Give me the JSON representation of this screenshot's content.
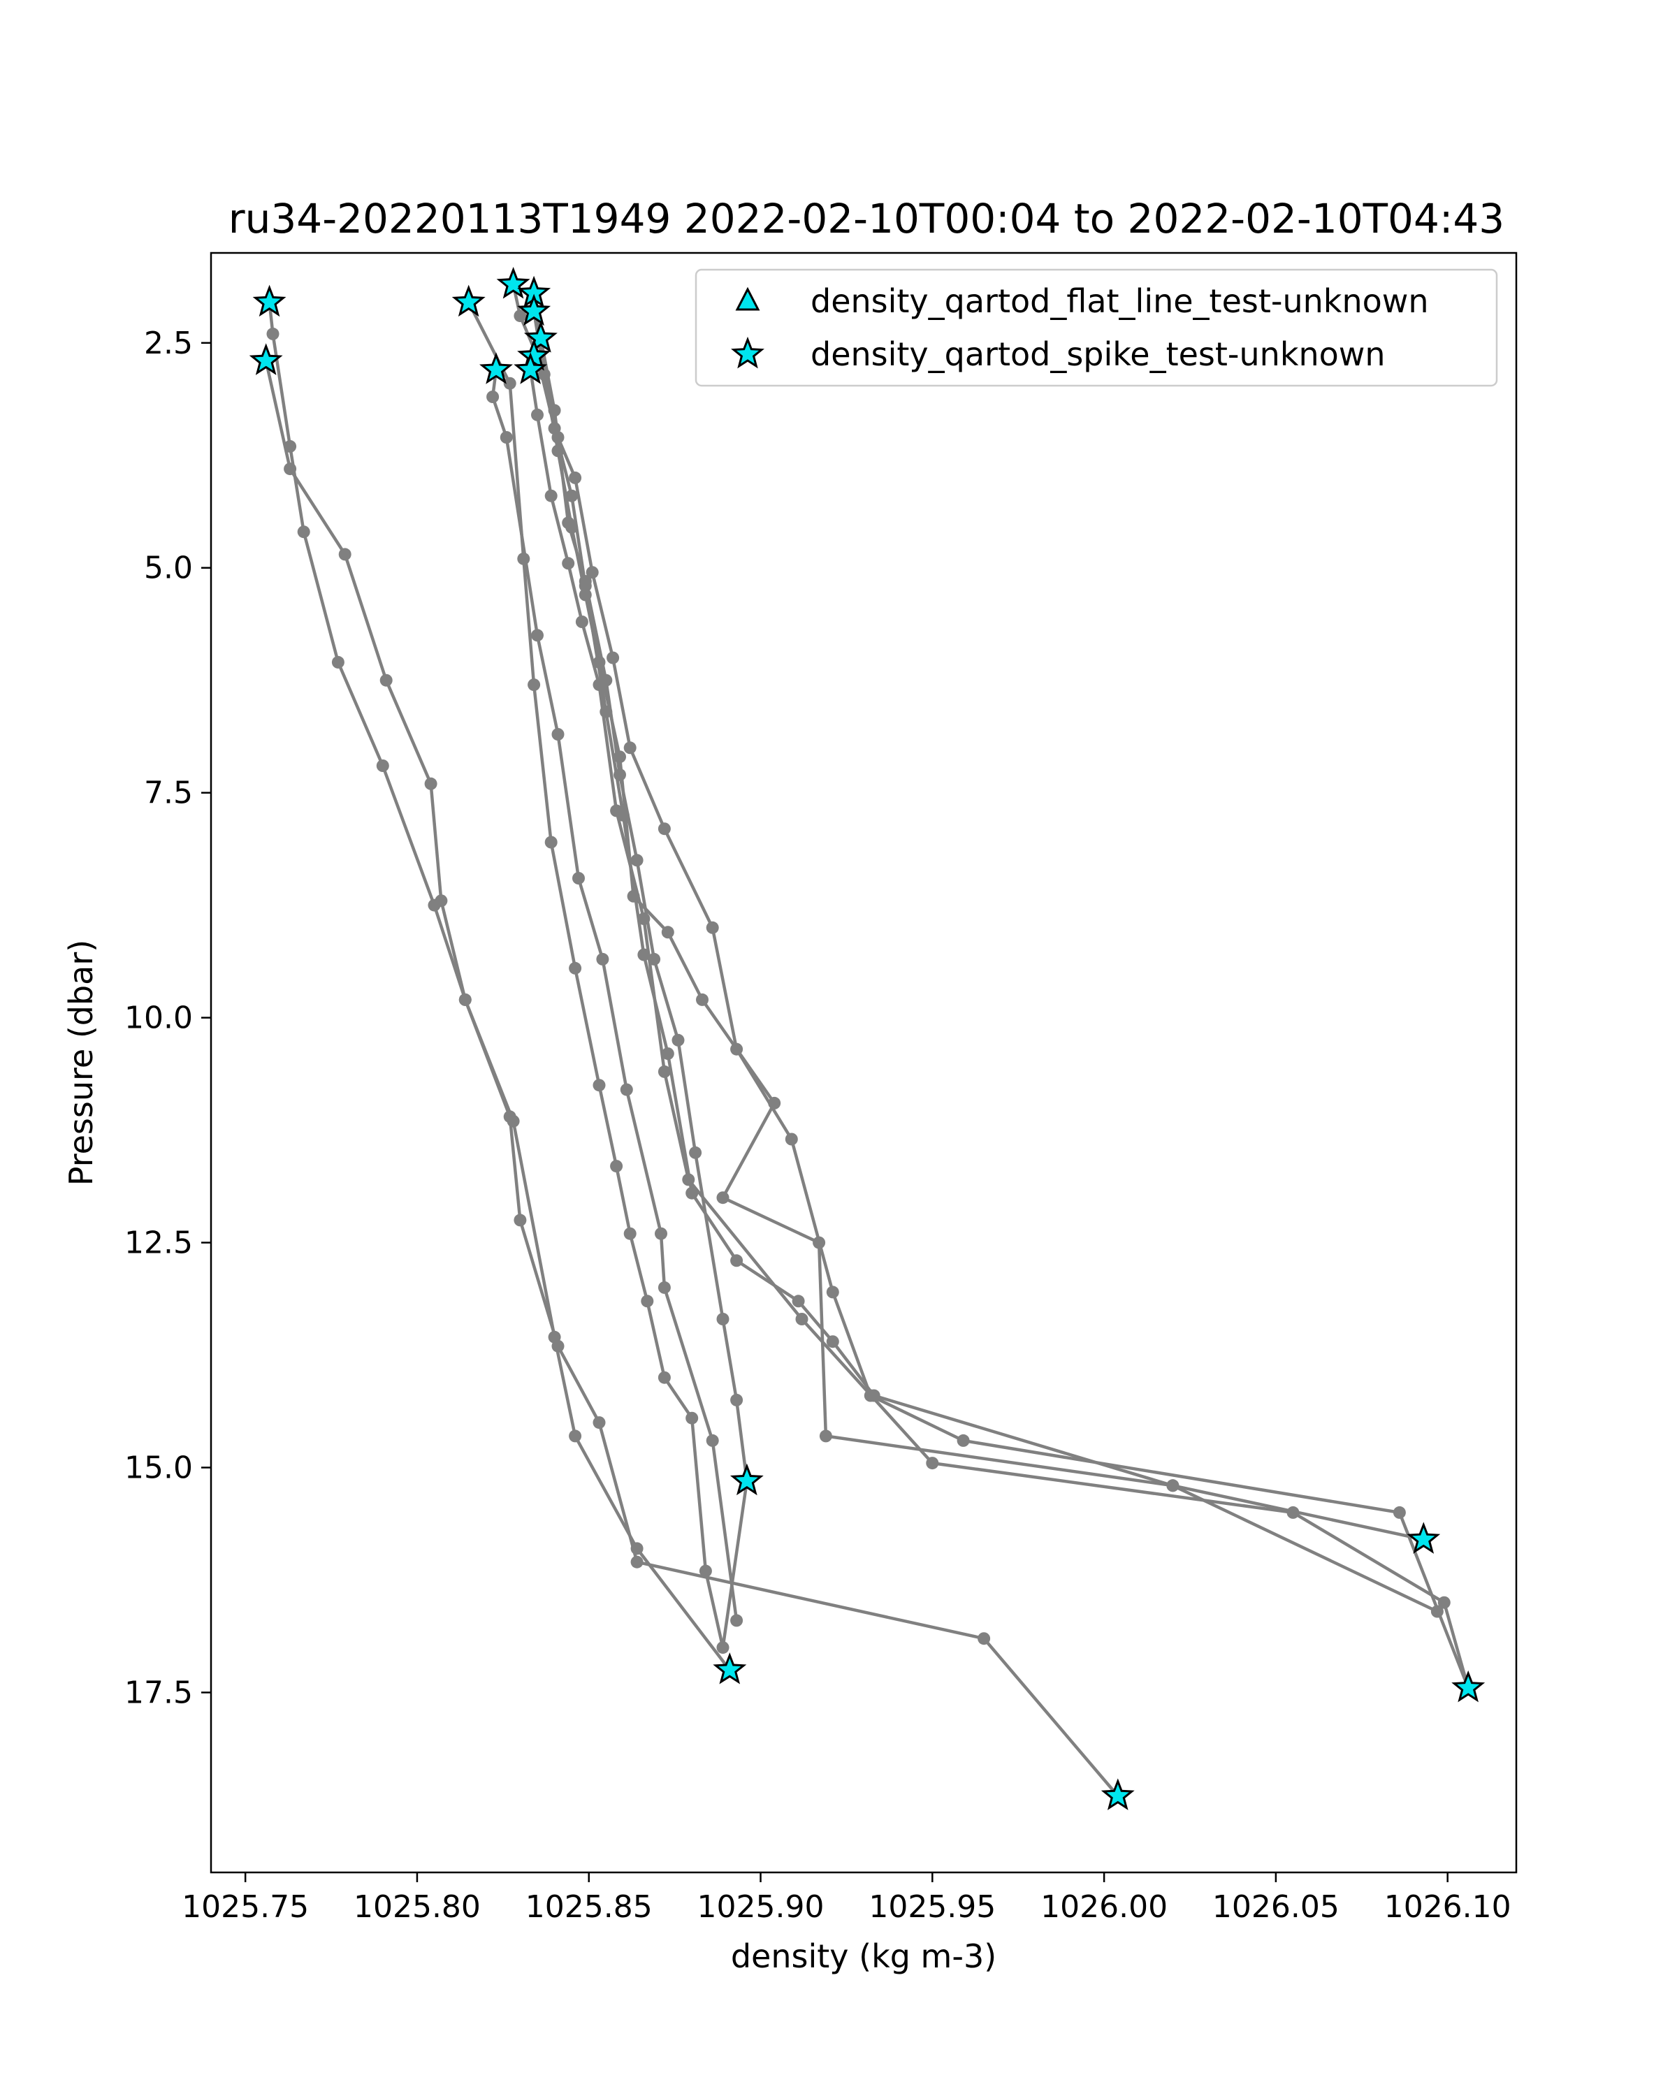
{
  "chart_data": {
    "type": "scatter",
    "title": "ru34-20220113T1949 2022-02-10T00:04 to 2022-02-10T04:43",
    "xlabel": "density (kg m-3)",
    "ylabel": "Pressure (dbar)",
    "xlim": [
      1025.74,
      1026.12
    ],
    "ylim": [
      19.5,
      1.5
    ],
    "y_inverted": true,
    "grid": false,
    "legend_position": "top-right",
    "x_ticks": [
      "1025.75",
      "1025.80",
      "1025.85",
      "1025.90",
      "1025.95",
      "1026.00",
      "1026.05",
      "1026.10"
    ],
    "y_ticks": [
      "2.5",
      "5.0",
      "7.5",
      "10.0",
      "12.5",
      "15.0",
      "17.5"
    ],
    "legend": [
      {
        "name": "density_qartod_flat_line_test-unknown",
        "marker": "triangle",
        "color": "#00e5ee"
      },
      {
        "name": "density_qartod_spike_test-unknown",
        "marker": "star",
        "color": "#00e5ee"
      }
    ],
    "line_color": "#808080",
    "profiles": [
      {
        "x": [
          1025.757,
          1025.758,
          1025.763,
          1025.767,
          1025.777,
          1025.79,
          1025.805,
          1025.814,
          1025.828,
          1025.84,
          1025.846,
          1025.864,
          1025.891
        ],
        "y": [
          2.05,
          2.4,
          3.65,
          4.6,
          6.05,
          7.2,
          8.75,
          9.8,
          11.15,
          13.55,
          14.65,
          15.9,
          17.25
        ]
      },
      {
        "x": [
          1025.756,
          1025.763,
          1025.779,
          1025.791,
          1025.804,
          1025.807,
          1025.814,
          1025.827,
          1025.83,
          1025.841,
          1025.853,
          1025.864,
          1025.965,
          1026.004
        ],
        "y": [
          2.7,
          3.9,
          4.85,
          6.25,
          7.4,
          8.7,
          9.8,
          11.1,
          12.25,
          13.65,
          14.5,
          16.05,
          16.9,
          18.65
        ]
      },
      {
        "x": [
          1025.815,
          1025.827,
          1025.831,
          1025.834,
          1025.839,
          1025.846,
          1025.853,
          1025.858,
          1025.862,
          1025.867,
          1025.872,
          1025.88,
          1025.884,
          1025.889,
          1025.896
        ],
        "y": [
          2.05,
          2.95,
          4.9,
          6.3,
          8.05,
          9.45,
          10.75,
          11.65,
          12.4,
          13.15,
          14.0,
          14.45,
          16.15,
          17.0,
          15.15
        ]
      },
      {
        "x": [
          1025.823,
          1025.822,
          1025.826,
          1025.835,
          1025.841,
          1025.847,
          1025.854,
          1025.861,
          1025.871,
          1025.872,
          1025.886,
          1025.893
        ],
        "y": [
          2.8,
          3.1,
          3.55,
          5.75,
          6.85,
          8.45,
          9.35,
          10.8,
          12.4,
          13.0,
          14.7,
          16.7
        ]
      },
      {
        "x": [
          1025.834,
          1025.837,
          1025.841,
          1025.845,
          1025.849,
          1025.853,
          1025.859,
          1025.863,
          1025.873,
          1025.883,
          1025.904,
          1025.889,
          1025.917,
          1025.919,
          1026.02,
          1026.093
        ],
        "y": [
          2.15,
          2.85,
          3.7,
          4.55,
          5.3,
          6.05,
          7.1,
          8.65,
          9.05,
          9.8,
          10.95,
          12.0,
          12.5,
          14.65,
          15.2,
          15.8
        ]
      },
      {
        "x": [
          1025.834,
          1025.836,
          1025.841,
          1025.846,
          1025.851,
          1025.857,
          1025.862,
          1025.872,
          1025.886,
          1025.893,
          1025.909,
          1025.921,
          1025.932,
          1025.959,
          1026.086,
          1026.106
        ],
        "y": [
          1.95,
          2.5,
          3.55,
          4.0,
          5.05,
          6.0,
          7.0,
          7.9,
          9.0,
          10.35,
          11.35,
          13.05,
          14.2,
          14.7,
          15.5,
          17.45
        ]
      },
      {
        "x": [
          1025.833,
          1025.835,
          1025.839,
          1025.844,
          1025.848,
          1025.853,
          1025.858,
          1025.866,
          1025.872,
          1025.879,
          1025.912,
          1025.95,
          1026.055,
          1026.099,
          1026.106
        ],
        "y": [
          2.8,
          3.3,
          4.2,
          4.95,
          5.6,
          6.3,
          7.7,
          8.9,
          10.6,
          11.8,
          13.35,
          14.95,
          15.5,
          16.5,
          17.45
        ]
      },
      {
        "x": [
          1025.836,
          1025.84,
          1025.844,
          1025.849,
          1025.855,
          1025.859,
          1025.864,
          1025.869,
          1025.876,
          1025.881,
          1025.889,
          1025.893,
          1025.896
        ],
        "y": [
          2.45,
          3.25,
          4.5,
          5.15,
          6.25,
          7.3,
          8.25,
          9.35,
          10.25,
          11.5,
          13.35,
          14.25,
          15.15
        ]
      },
      {
        "x": [
          1025.828,
          1025.83,
          1025.835,
          1025.84,
          1025.845,
          1025.849,
          1025.855,
          1025.86,
          1025.866,
          1025.873,
          1025.88,
          1025.893,
          1025.911,
          1025.921,
          1025.933,
          1026.02,
          1026.097
        ],
        "y": [
          1.85,
          2.2,
          2.65,
          3.45,
          4.2,
          5.2,
          6.6,
          7.75,
          9.3,
          10.4,
          11.95,
          12.7,
          13.15,
          13.6,
          14.2,
          15.2,
          16.6
        ]
      }
    ],
    "spike_flags": {
      "x": [
        1025.757,
        1025.756,
        1025.815,
        1025.828,
        1025.834,
        1025.834,
        1025.836,
        1025.834,
        1025.823,
        1025.833,
        1025.896,
        1025.891,
        1026.093,
        1026.106,
        1026.004
      ],
      "y": [
        2.05,
        2.7,
        2.05,
        1.85,
        1.95,
        2.15,
        2.45,
        2.65,
        2.8,
        2.8,
        15.15,
        17.25,
        15.8,
        17.45,
        18.65
      ]
    },
    "flat_line_flags": {
      "x": [],
      "y": []
    }
  }
}
